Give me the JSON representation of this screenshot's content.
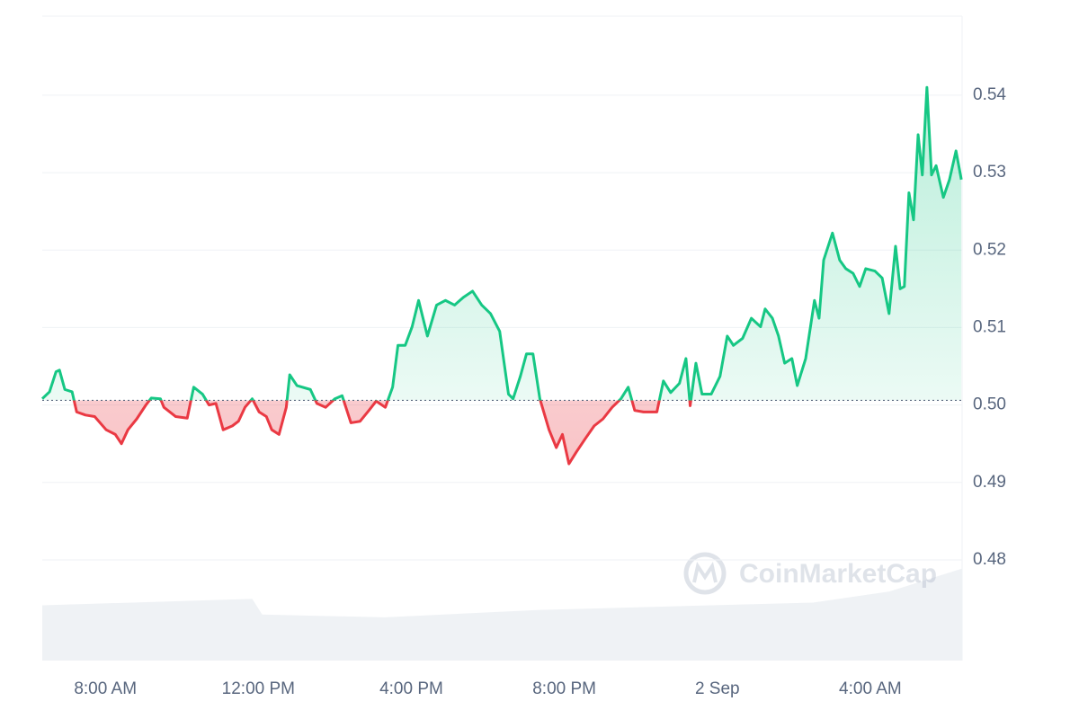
{
  "chart_data": {
    "type": "line",
    "watermark": "CoinMarketCap",
    "baseline": 0.5006,
    "up_color": "#16c784",
    "down_color": "#ea3943",
    "grid": true,
    "xlim": [
      6.35,
      30.4
    ],
    "xticks": [
      {
        "value": 8,
        "label": "8:00 AM"
      },
      {
        "value": 12,
        "label": "12:00 PM"
      },
      {
        "value": 16,
        "label": "4:00 PM"
      },
      {
        "value": 20,
        "label": "8:00 PM"
      },
      {
        "value": 24,
        "label": "2 Sep"
      },
      {
        "value": 28,
        "label": "4:00 AM"
      }
    ],
    "ylim": [
      0.467,
      0.5502
    ],
    "yticks": [
      {
        "value": 0.48,
        "label": "0.48"
      },
      {
        "value": 0.49,
        "label": "0.49"
      },
      {
        "value": 0.5,
        "label": "0.50"
      },
      {
        "value": 0.51,
        "label": "0.51"
      },
      {
        "value": 0.52,
        "label": "0.52"
      },
      {
        "value": 0.53,
        "label": "0.53"
      },
      {
        "value": 0.54,
        "label": "0.54"
      }
    ],
    "series": [
      {
        "color": "#16c784",
        "x": [
          6.35,
          6.54,
          6.71,
          6.8,
          6.94,
          7.13,
          7.25,
          7.48,
          7.72,
          8.02,
          8.26,
          8.42,
          8.59,
          8.82,
          9.06,
          9.2,
          9.44,
          9.53,
          9.84,
          10.14,
          10.31,
          10.54,
          10.71,
          10.89,
          11.08,
          11.32,
          11.48,
          11.65,
          11.84,
          12.02,
          12.21,
          12.35,
          12.54,
          12.73,
          12.82,
          13.01,
          13.36,
          13.53,
          13.76,
          14.0,
          14.19,
          14.42,
          14.66,
          14.89,
          15.08,
          15.32,
          15.51,
          15.65,
          15.84,
          16.02,
          16.19,
          16.42,
          16.66,
          16.89,
          17.13,
          17.36,
          17.6,
          17.84,
          18.07,
          18.31,
          18.54,
          18.66,
          18.85,
          19.01,
          19.18,
          19.36,
          19.6,
          19.79,
          19.95,
          20.12,
          20.31,
          20.54,
          20.78,
          21.01,
          21.25,
          21.48,
          21.67,
          21.84,
          22.07,
          22.42,
          22.59,
          22.78,
          23.01,
          23.18,
          23.29,
          23.44,
          23.6,
          23.84,
          24.07,
          24.26,
          24.42,
          24.66,
          24.89,
          25.13,
          25.25,
          25.44,
          25.6,
          25.76,
          25.95,
          26.09,
          26.31,
          26.54,
          26.66,
          26.78,
          27.01,
          27.2,
          27.36,
          27.55,
          27.72,
          27.88,
          28.12,
          28.31,
          28.49,
          28.66,
          28.78,
          28.89,
          29.01,
          29.13,
          29.25,
          29.36,
          29.48,
          29.6,
          29.72,
          29.91,
          30.07,
          30.24,
          30.38
        ],
        "values": [
          0.5008,
          0.5017,
          0.5043,
          0.5045,
          0.502,
          0.5017,
          0.4991,
          0.4987,
          0.4985,
          0.4968,
          0.4962,
          0.495,
          0.4968,
          0.4982,
          0.5,
          0.5009,
          0.5008,
          0.4997,
          0.4985,
          0.4983,
          0.5023,
          0.5014,
          0.5,
          0.5002,
          0.4968,
          0.4973,
          0.4979,
          0.4997,
          0.5008,
          0.4991,
          0.4985,
          0.4968,
          0.4962,
          0.4997,
          0.5039,
          0.5025,
          0.502,
          0.5002,
          0.4997,
          0.5008,
          0.5012,
          0.4977,
          0.4979,
          0.4993,
          0.5005,
          0.4997,
          0.5023,
          0.5077,
          0.5077,
          0.5101,
          0.5135,
          0.5089,
          0.5129,
          0.5135,
          0.5129,
          0.5139,
          0.5147,
          0.5129,
          0.5118,
          0.5095,
          0.5014,
          0.5008,
          0.5037,
          0.5066,
          0.5066,
          0.5008,
          0.4968,
          0.4945,
          0.4962,
          0.4924,
          0.4939,
          0.4956,
          0.4973,
          0.4982,
          0.4997,
          0.5008,
          0.5023,
          0.4993,
          0.4991,
          0.4991,
          0.5031,
          0.5016,
          0.5028,
          0.506,
          0.4999,
          0.5054,
          0.5014,
          0.5014,
          0.5037,
          0.5089,
          0.5077,
          0.5086,
          0.5112,
          0.5101,
          0.5124,
          0.5112,
          0.5089,
          0.5054,
          0.506,
          0.5025,
          0.506,
          0.5135,
          0.5112,
          0.5187,
          0.5222,
          0.5187,
          0.5176,
          0.517,
          0.5153,
          0.5176,
          0.5173,
          0.5164,
          0.5118,
          0.5205,
          0.515,
          0.5153,
          0.5274,
          0.5239,
          0.5349,
          0.5297,
          0.541,
          0.5297,
          0.5309,
          0.5268,
          0.5291,
          0.5328,
          0.5291
        ]
      }
    ],
    "volume": {
      "color": "#eff2f5",
      "vlim": [
        0,
        700
      ],
      "x": [
        6.35,
        11.84,
        12.1,
        15.3,
        19.36,
        26.5,
        28.5,
        30.4
      ],
      "values": [
        60,
        67,
        50,
        47,
        55,
        63,
        75,
        100
      ]
    }
  }
}
